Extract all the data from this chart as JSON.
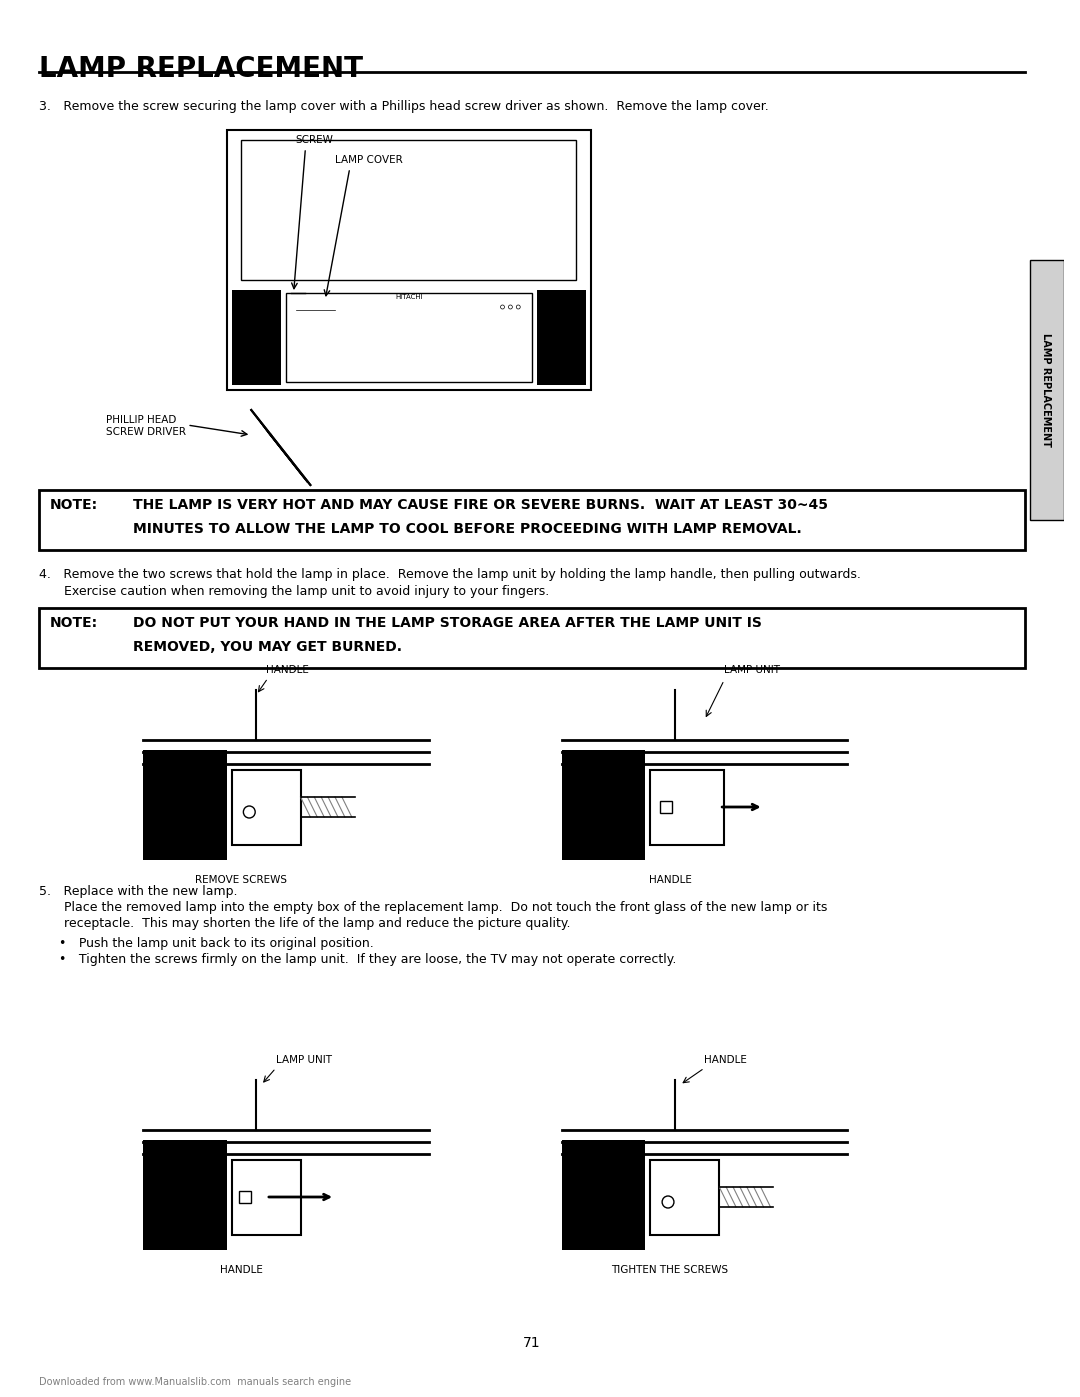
{
  "title": "LAMP REPLACEMENT",
  "page_number": "71",
  "bg_color": "#ffffff",
  "text_color": "#000000",
  "step3_text": "3. Remove the screw securing the lamp cover with a Phillips head screw driver as shown.  Remove the lamp cover.",
  "step4_text_line1": "4. Remove the two screws that hold the lamp in place.  Remove the lamp unit by holding the lamp handle, then pulling outwards.",
  "step4_text_line2": "  Exercise caution when removing the lamp unit to avoid injury to your fingers.",
  "step5_text_line1": "5. Replace with the new lamp.",
  "step5_text_line2": "  Place the removed lamp into the empty box of the replacement lamp.  Do not touch the front glass of the new lamp or its",
  "step5_text_line3": "  receptacle.  This may shorten the life of the lamp and reduce the picture quality.",
  "step5_bullet1": "• Push the lamp unit back to its original position.",
  "step5_bullet2": "• Tighten the screws firmly on the lamp unit.  If they are loose, the TV may not operate correctly.",
  "note1_label": "NOTE:",
  "note1_text_line1": "THE LAMP IS VERY HOT AND MAY CAUSE FIRE OR SEVERE BURNS.  WAIT AT LEAST 30~45",
  "note1_text_line2": "MINUTES TO ALLOW THE LAMP TO COOL BEFORE PROCEEDING WITH LAMP REMOVAL.",
  "note2_label": "NOTE:",
  "note2_text_line1": "DO NOT PUT YOUR HAND IN THE LAMP STORAGE AREA AFTER THE LAMP UNIT IS",
  "note2_text_line2": "REMOVED, YOU MAY GET BURNED.",
  "sidebar_text": "LAMP REPLACEMENT",
  "footer_text": "Downloaded from www.Manualslib.com  manuals search engine"
}
